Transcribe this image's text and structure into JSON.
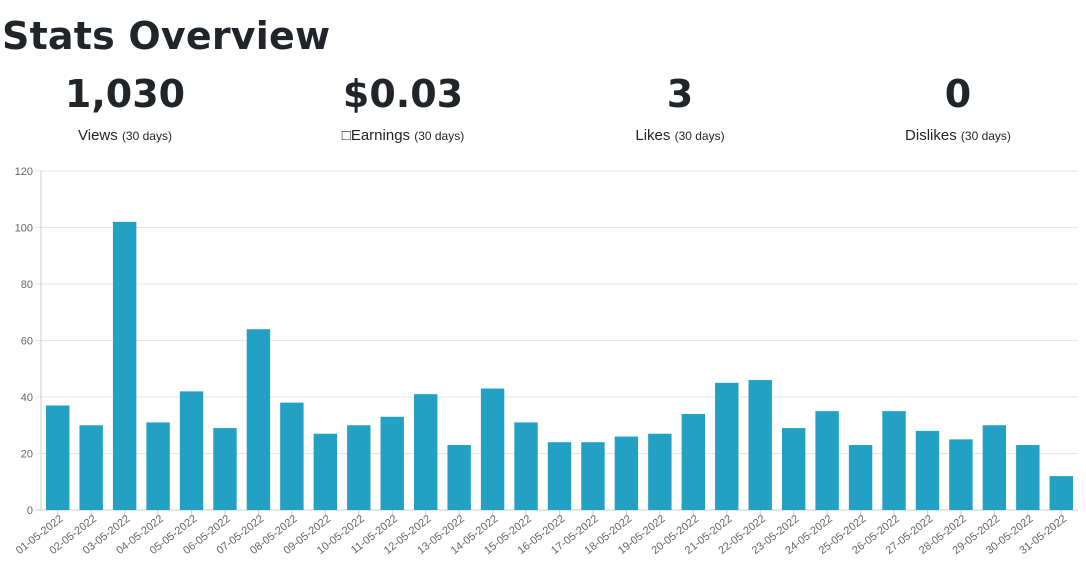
{
  "page": {
    "title": "Stats Overview"
  },
  "stats": [
    {
      "value": "1,030",
      "label": "Views",
      "period": "(30 days)"
    },
    {
      "value": "$0.03",
      "label": "Earnings",
      "period": "(30 days)"
    },
    {
      "value": "3",
      "label": "Likes",
      "period": "(30 days)"
    },
    {
      "value": "0",
      "label": "Dislikes",
      "period": "(30 days)"
    }
  ],
  "chart_data": {
    "type": "bar",
    "categories": [
      "01-05-2022",
      "02-05-2022",
      "03-05-2022",
      "04-05-2022",
      "05-05-2022",
      "06-05-2022",
      "07-05-2022",
      "08-05-2022",
      "09-05-2022",
      "10-05-2022",
      "11-05-2022",
      "12-05-2022",
      "13-05-2022",
      "14-05-2022",
      "15-05-2022",
      "16-05-2022",
      "17-05-2022",
      "18-05-2022",
      "19-05-2022",
      "20-05-2022",
      "21-05-2022",
      "22-05-2022",
      "23-05-2022",
      "24-05-2022",
      "25-05-2022",
      "26-05-2022",
      "27-05-2022",
      "28-05-2022",
      "29-05-2022",
      "30-05-2022",
      "31-05-2022"
    ],
    "values": [
      37,
      30,
      102,
      31,
      42,
      29,
      64,
      38,
      27,
      30,
      33,
      41,
      23,
      43,
      31,
      24,
      24,
      26,
      27,
      34,
      45,
      46,
      29,
      35,
      23,
      35,
      28,
      25,
      30,
      23,
      12
    ],
    "ylim": [
      0,
      120
    ],
    "yticks": [
      0,
      20,
      40,
      60,
      80,
      100,
      120
    ],
    "grid": true,
    "colors": {
      "bar": "#22a1c4",
      "grid": "#e5e5e5",
      "axis": "#cccccc"
    }
  }
}
